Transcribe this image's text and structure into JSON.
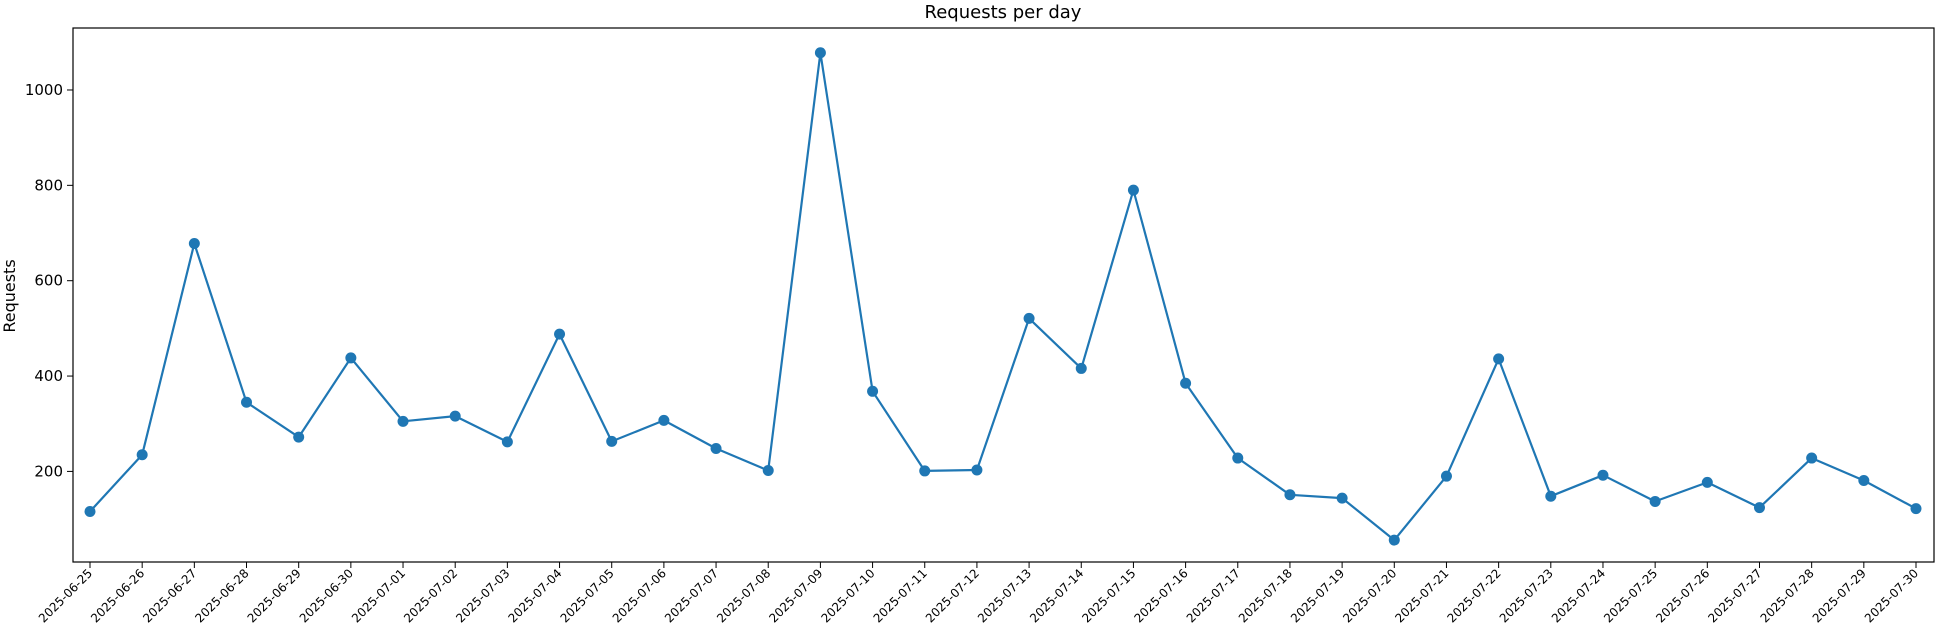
{
  "chart_data": {
    "type": "line",
    "title": "Requests per day",
    "xlabel": "",
    "ylabel": "Requests",
    "ylim": [
      10,
      1130
    ],
    "yticks": [
      200,
      400,
      600,
      800,
      1000
    ],
    "grid": false,
    "legend": "none",
    "colors": {
      "series": "#1f77b4",
      "axes": "#000000",
      "background": "#ffffff"
    },
    "x": [
      "2025-06-25",
      "2025-06-26",
      "2025-06-27",
      "2025-06-28",
      "2025-06-29",
      "2025-06-30",
      "2025-07-01",
      "2025-07-02",
      "2025-07-03",
      "2025-07-04",
      "2025-07-05",
      "2025-07-06",
      "2025-07-07",
      "2025-07-08",
      "2025-07-09",
      "2025-07-10",
      "2025-07-11",
      "2025-07-12",
      "2025-07-13",
      "2025-07-14",
      "2025-07-15",
      "2025-07-16",
      "2025-07-17",
      "2025-07-18",
      "2025-07-19",
      "2025-07-20",
      "2025-07-21",
      "2025-07-22",
      "2025-07-23",
      "2025-07-24",
      "2025-07-25",
      "2025-07-26",
      "2025-07-27",
      "2025-07-28",
      "2025-07-29",
      "2025-07-30"
    ],
    "series": [
      {
        "values": [
          116,
          235,
          678,
          345,
          272,
          438,
          305,
          316,
          262,
          488,
          263,
          307,
          248,
          202,
          1078,
          368,
          201,
          203,
          521,
          416,
          790,
          385,
          228,
          151,
          144,
          56,
          190,
          436,
          148,
          192,
          137,
          177,
          124,
          228,
          181,
          122
        ]
      }
    ]
  }
}
